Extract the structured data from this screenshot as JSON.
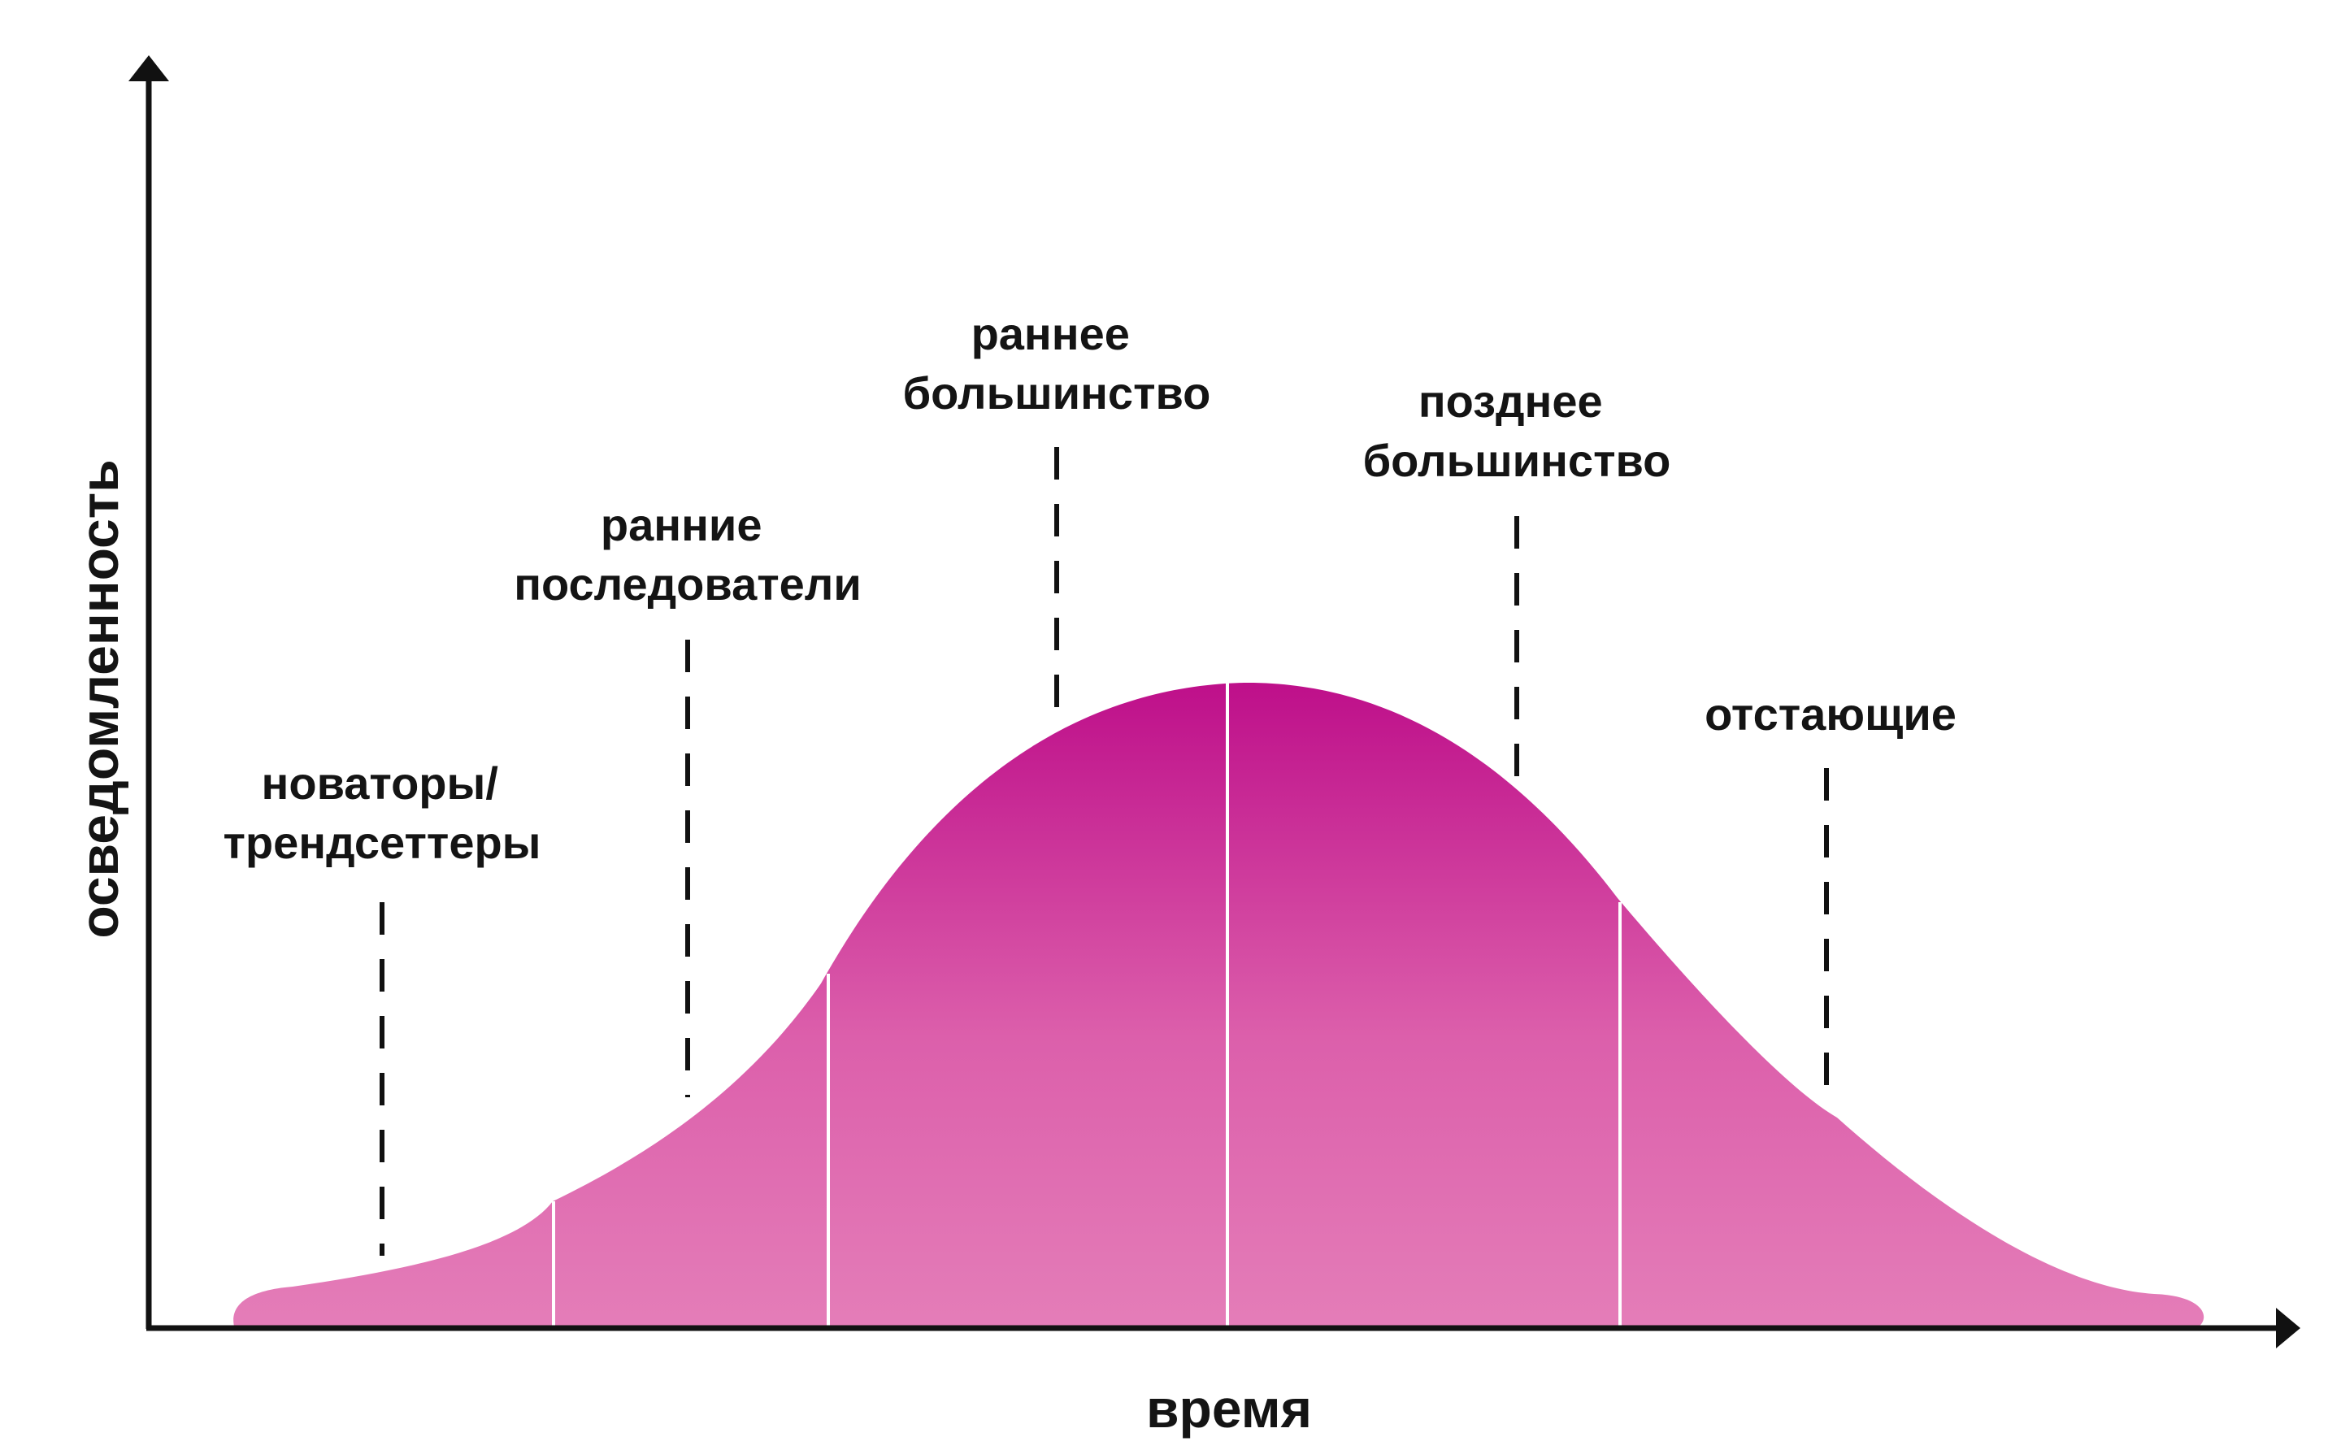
{
  "diagram": {
    "x_axis_label": "время",
    "y_axis_label": "осведомленность",
    "segments": [
      {
        "id": "innovators",
        "lines": [
          "новаторы/",
          "трендсеттеры"
        ]
      },
      {
        "id": "early-adopters",
        "lines": [
          "ранние",
          "последователи"
        ]
      },
      {
        "id": "early-majority",
        "lines": [
          "раннее",
          "большинство"
        ]
      },
      {
        "id": "late-majority",
        "lines": [
          "позднее",
          "большинство"
        ]
      },
      {
        "id": "laggards",
        "lines": [
          "отстающие"
        ]
      }
    ],
    "colors": {
      "curve_top": "#be0f8a",
      "curve_bottom": "#e47db8",
      "axis": "#111111",
      "divider": "#ffffff"
    }
  }
}
